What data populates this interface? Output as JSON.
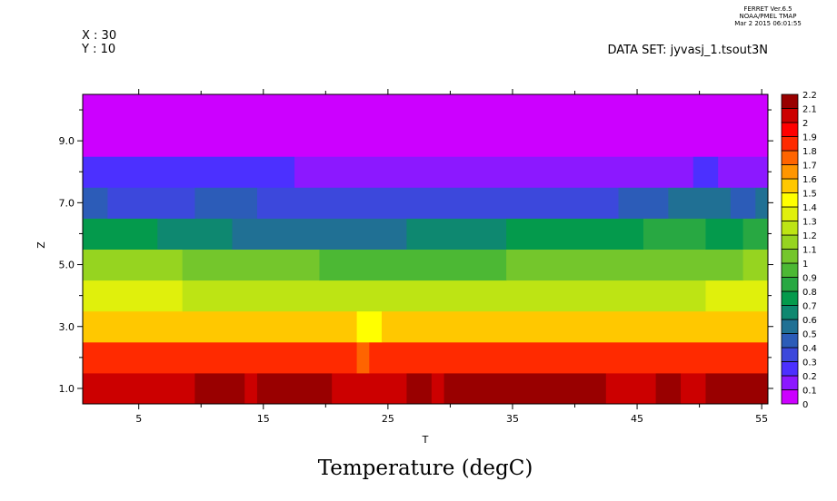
{
  "header": {
    "line1": "FERRET  Ver.6.5",
    "line2": "NOAA/PMEL TMAP",
    "line3": "Mar  2 2015 06:01:55"
  },
  "info": {
    "x_readout": "X : 30",
    "y_readout": "Y : 10",
    "dataset": "DATA SET: jyvasj_1.tsout3N"
  },
  "chart_data": {
    "type": "heatmap",
    "title": "Temperature (degC)",
    "xlabel": "T",
    "ylabel": "Z",
    "xlim": [
      0.5,
      55.5
    ],
    "ylim": [
      0.5,
      10.5
    ],
    "x_ticks": [
      5,
      15,
      25,
      35,
      45,
      55
    ],
    "x_tick_labels": [
      "5",
      "15",
      "25",
      "35",
      "45",
      "55"
    ],
    "y_ticks": [
      1,
      3,
      5,
      7,
      9
    ],
    "y_tick_labels": [
      "1.0",
      "3.0",
      "5.0",
      "7.0",
      "9.0"
    ],
    "rows_note": "each row: z value, runs of [t_start, t_end, value]",
    "rows": [
      {
        "z": 1,
        "runs": [
          [
            1,
            9,
            2.05
          ],
          [
            10,
            13,
            2.15
          ],
          [
            14,
            14,
            2.05
          ],
          [
            15,
            20,
            2.15
          ],
          [
            21,
            26,
            2.05
          ],
          [
            27,
            28,
            2.15
          ],
          [
            29,
            29,
            2.05
          ],
          [
            30,
            42,
            2.15
          ],
          [
            43,
            46,
            2.05
          ],
          [
            47,
            48,
            2.15
          ],
          [
            49,
            50,
            2.05
          ],
          [
            51,
            55,
            2.15
          ]
        ]
      },
      {
        "z": 2,
        "runs": [
          [
            1,
            22,
            1.85
          ],
          [
            23,
            23,
            1.75
          ],
          [
            24,
            55,
            1.85
          ]
        ]
      },
      {
        "z": 3,
        "runs": [
          [
            1,
            22,
            1.55
          ],
          [
            23,
            24,
            1.45
          ],
          [
            25,
            55,
            1.55
          ]
        ]
      },
      {
        "z": 4,
        "runs": [
          [
            1,
            8,
            1.35
          ],
          [
            9,
            50,
            1.25
          ],
          [
            51,
            55,
            1.35
          ]
        ]
      },
      {
        "z": 5,
        "runs": [
          [
            1,
            8,
            1.15
          ],
          [
            9,
            19,
            1.05
          ],
          [
            20,
            34,
            0.95
          ],
          [
            35,
            53,
            1.05
          ],
          [
            54,
            55,
            1.15
          ]
        ]
      },
      {
        "z": 6,
        "runs": [
          [
            1,
            6,
            0.75
          ],
          [
            7,
            12,
            0.65
          ],
          [
            13,
            26,
            0.55
          ],
          [
            27,
            34,
            0.65
          ],
          [
            35,
            45,
            0.75
          ],
          [
            46,
            50,
            0.85
          ],
          [
            51,
            53,
            0.75
          ],
          [
            54,
            55,
            0.85
          ]
        ]
      },
      {
        "z": 7,
        "runs": [
          [
            1,
            2,
            0.45
          ],
          [
            3,
            9,
            0.35
          ],
          [
            10,
            14,
            0.45
          ],
          [
            15,
            43,
            0.35
          ],
          [
            44,
            47,
            0.45
          ],
          [
            48,
            52,
            0.55
          ],
          [
            53,
            54,
            0.45
          ],
          [
            55,
            55,
            0.55
          ]
        ]
      },
      {
        "z": 8,
        "runs": [
          [
            1,
            17,
            0.25
          ],
          [
            18,
            49,
            0.15
          ],
          [
            50,
            51,
            0.25
          ],
          [
            52,
            55,
            0.15
          ]
        ]
      },
      {
        "z": 9,
        "runs": [
          [
            1,
            55,
            0.05
          ]
        ]
      },
      {
        "z": 10,
        "runs": [
          [
            1,
            55,
            0.05
          ]
        ]
      }
    ],
    "colorbar": {
      "levels": [
        "0",
        "0.1",
        "0.2",
        "0.3",
        "0.4",
        "0.5",
        "0.6",
        "0.7",
        "0.8",
        "0.9",
        "1",
        "1.1",
        "1.2",
        "1.3",
        "1.4",
        "1.5",
        "1.6",
        "1.7",
        "1.8",
        "1.9",
        "2",
        "2.1",
        "2.2"
      ],
      "colors": [
        "#cc00ff",
        "#8c18ff",
        "#4c30ff",
        "#3c48dc",
        "#2c5cb8",
        "#207094",
        "#0e8870",
        "#049a4c",
        "#28a842",
        "#4cb834",
        "#74c62c",
        "#96d420",
        "#bde414",
        "#e0f00c",
        "#ffff00",
        "#ffc800",
        "#ff9600",
        "#ff6400",
        "#ff2a00",
        "#ff0000",
        "#cc0000",
        "#990000"
      ]
    }
  }
}
